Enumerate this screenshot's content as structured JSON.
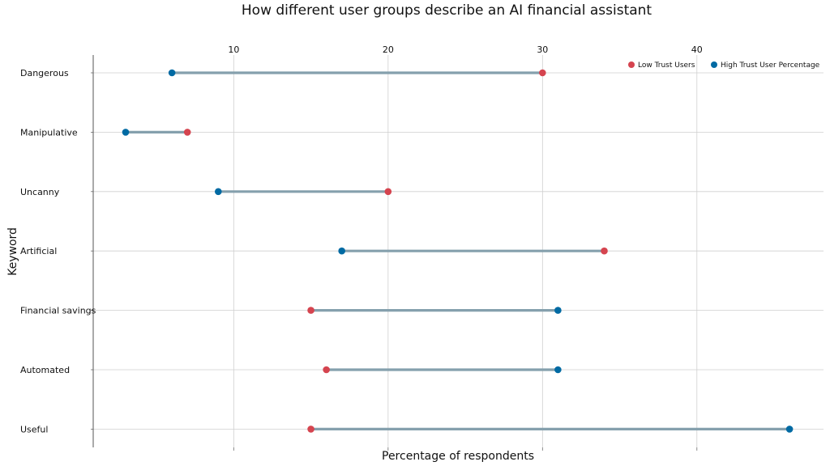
{
  "chart_data": {
    "type": "dumbbell",
    "title": "How different user groups describe an AI financial assistant",
    "xlabel": "Percentage of respondents",
    "ylabel": "Keyword",
    "xlim": [
      0.9,
      48.2
    ],
    "x_ticks": [
      10,
      20,
      30,
      40
    ],
    "x_tick_labels": [
      "10",
      "20",
      "30",
      "40"
    ],
    "x_tick_position": "top",
    "grid": true,
    "legend_position": "top-right",
    "categories": [
      "Dangerous",
      "Manipulative",
      "Uncanny",
      "Artificial",
      "Financial savings",
      "Automated",
      "Useful"
    ],
    "series": [
      {
        "name": "Low Trust Users",
        "color": "#d5444f",
        "values": [
          30,
          7,
          20,
          34,
          15,
          16,
          15
        ]
      },
      {
        "name": "High Trust User Percentage",
        "color": "#006aa3",
        "values": [
          6,
          3,
          9,
          17,
          31,
          31,
          46
        ]
      }
    ],
    "connector_color": "#85a0ad"
  }
}
